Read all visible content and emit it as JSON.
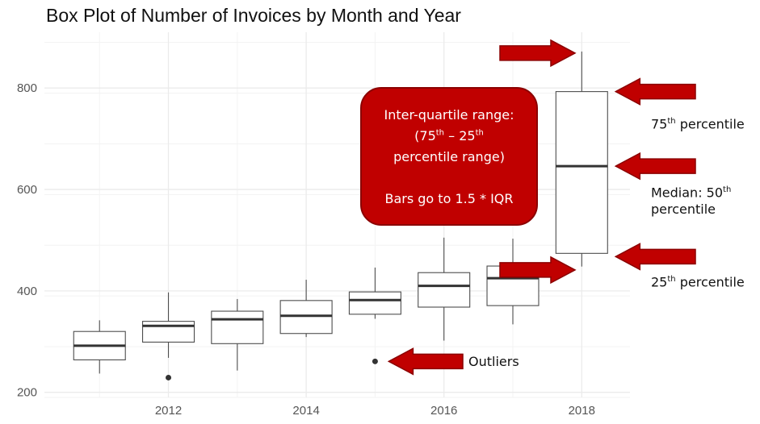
{
  "chart_data": {
    "type": "box",
    "title": "Box Plot of Number of Invoices by Month and Year",
    "xlabel": "",
    "ylabel": "",
    "xlim": [
      2010.2,
      2018.7
    ],
    "ylim": [
      190,
      910
    ],
    "x_ticks": [
      2012,
      2014,
      2016,
      2018
    ],
    "y_ticks": [
      200,
      400,
      600,
      800
    ],
    "grid": true,
    "boxes": [
      {
        "x": 2011,
        "whisker_low": 237,
        "q1": 264,
        "median": 292,
        "q3": 320,
        "whisker_high": 342,
        "outliers": []
      },
      {
        "x": 2012,
        "whisker_low": 268,
        "q1": 299,
        "median": 331,
        "q3": 340,
        "whisker_high": 397,
        "outliers": [
          229
        ]
      },
      {
        "x": 2013,
        "whisker_low": 243,
        "q1": 296,
        "median": 344,
        "q3": 360,
        "whisker_high": 384,
        "outliers": []
      },
      {
        "x": 2014,
        "whisker_low": 309,
        "q1": 316,
        "median": 351,
        "q3": 381,
        "whisker_high": 422,
        "outliers": []
      },
      {
        "x": 2015,
        "whisker_low": 345,
        "q1": 354,
        "median": 382,
        "q3": 398,
        "whisker_high": 446,
        "outliers": [
          261
        ]
      },
      {
        "x": 2016,
        "whisker_low": 302,
        "q1": 368,
        "median": 410,
        "q3": 436,
        "whisker_high": 505,
        "outliers": []
      },
      {
        "x": 2017,
        "whisker_low": 334,
        "q1": 371,
        "median": 425,
        "q3": 449,
        "whisker_high": 503,
        "outliers": []
      },
      {
        "x": 2018,
        "whisker_low": 448,
        "q1": 474,
        "median": 646,
        "q3": 793,
        "whisker_high": 872,
        "outliers": []
      }
    ]
  },
  "annotations": {
    "iqr_line1": "Inter-quartile range:",
    "iqr_open": "(75",
    "th": "th",
    "iqr_dash": " – 25",
    "iqr_line3": "percentile range)",
    "iqr_line4": "Bars go to 1.5 * IQR",
    "p75_num": "75",
    "p75_text": " percentile",
    "median_line1": "Median:  50",
    "median_line2": "percentile",
    "p25_num": "25",
    "p25_text": " percentile",
    "outliers": "Outliers"
  },
  "colors": {
    "arrow": "#c00000",
    "arrow_edge": "#8b0000",
    "box_stroke": "#4d4d4d",
    "median": "#333333",
    "grid": "#ebebeb"
  }
}
